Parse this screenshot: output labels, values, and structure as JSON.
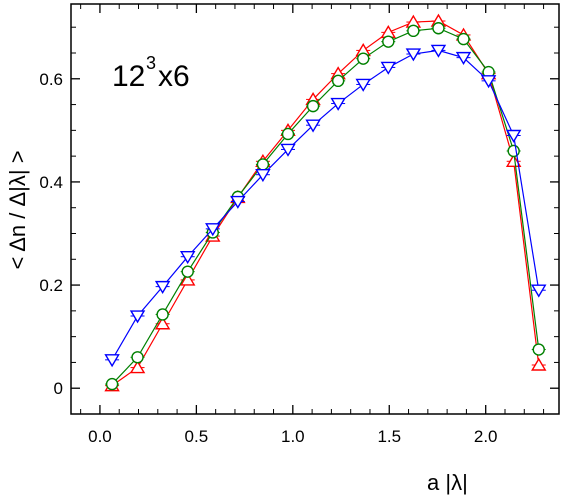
{
  "chart_data": {
    "type": "line",
    "title": "",
    "annotation": {
      "base": "12",
      "sup": "3",
      "rest": "x6"
    },
    "xlabel": "a |λ|",
    "ylabel": "< Δn / Δ|λ| >",
    "xlim": [
      -0.15,
      2.38
    ],
    "ylim": [
      -0.05,
      0.745
    ],
    "x_ticks": [
      0.0,
      0.5,
      1.0,
      1.5,
      2.0
    ],
    "x_tick_labels": [
      "0.0",
      "0.5",
      "1.0",
      "1.5",
      "2.0"
    ],
    "y_ticks": [
      0.0,
      0.2,
      0.4,
      0.6
    ],
    "y_tick_labels": [
      "0",
      "0.2",
      "0.4",
      "0.6"
    ],
    "x_minor_step": 0.1,
    "y_minor_step": 0.05,
    "grid": false,
    "legend": "none",
    "x": [
      0.063,
      0.195,
      0.325,
      0.455,
      0.585,
      0.715,
      0.845,
      0.975,
      1.105,
      1.235,
      1.365,
      1.495,
      1.625,
      1.755,
      1.885,
      2.015,
      2.145,
      2.275
    ],
    "series": [
      {
        "marker": "triangle-up",
        "color": "#ff0000",
        "values": [
          0.005,
          0.04,
          0.125,
          0.21,
          0.295,
          0.37,
          0.44,
          0.5,
          0.56,
          0.61,
          0.655,
          0.69,
          0.71,
          0.712,
          0.685,
          0.61,
          0.44,
          0.045
        ]
      },
      {
        "marker": "circle",
        "color": "#008000",
        "values": [
          0.008,
          0.06,
          0.143,
          0.226,
          0.302,
          0.371,
          0.434,
          0.493,
          0.547,
          0.596,
          0.639,
          0.672,
          0.693,
          0.698,
          0.677,
          0.613,
          0.46,
          0.075
        ]
      },
      {
        "marker": "triangle-down",
        "color": "#0000ff",
        "values": [
          0.055,
          0.14,
          0.197,
          0.255,
          0.309,
          0.362,
          0.414,
          0.463,
          0.51,
          0.552,
          0.589,
          0.622,
          0.648,
          0.655,
          0.641,
          0.596,
          0.49,
          0.19
        ]
      }
    ]
  }
}
